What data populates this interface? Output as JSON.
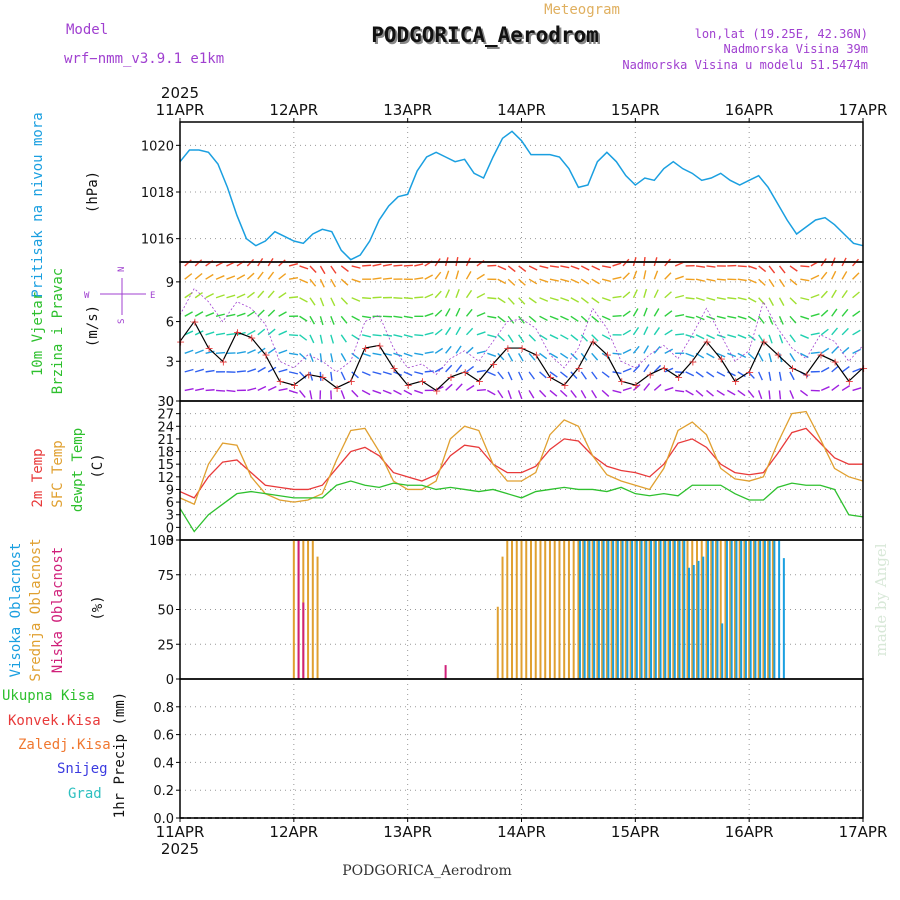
{
  "header": {
    "model_label": "Model",
    "model_name": "wrf−nmm_v3.9.1 e1km",
    "station": "PODGORICA_Aerodrom",
    "meteogram": "Meteogram",
    "lonlat": "lon,lat (19.25E, 42.36N)",
    "elevation": "Nadmorska Visina 39m",
    "model_elevation": "Nadmorska Visina u modelu 51.5474m",
    "year": "2025",
    "footer_station": "PODGORICA_Aerodrom",
    "credit": "made by Angel"
  },
  "colors": {
    "pressure": "#1a9fe0",
    "temp2m": "#e83a3a",
    "sfc": "#e0a030",
    "dewpt": "#2ec02e",
    "high_cloud": "#1a9fe0",
    "mid_cloud": "#e0a030",
    "low_cloud": "#d0207a",
    "wind_speed": "#000000",
    "gust_marker": "#e83a3a",
    "purple": "#a040d0"
  },
  "chart_data": [
    {
      "type": "line",
      "title": "",
      "ylabel": "Pritisak na nivou mora",
      "unit": "(hPa)",
      "ylim": [
        1015,
        1021
      ],
      "yticks": [
        1016,
        1018,
        1020
      ],
      "x_ticks": [
        "11APR",
        "12APR",
        "13APR",
        "14APR",
        "15APR",
        "16APR",
        "17APR"
      ],
      "x": [
        0,
        2,
        4,
        6,
        8,
        10,
        12,
        14,
        16,
        18,
        20,
        22,
        24,
        26,
        28,
        30,
        32,
        34,
        36,
        38,
        40,
        42,
        44,
        46,
        48,
        50,
        52,
        54,
        56,
        58,
        60,
        62,
        64,
        66,
        68,
        70,
        72,
        74,
        76,
        78,
        80,
        82,
        84,
        86,
        88,
        90,
        92,
        94,
        96,
        98,
        100,
        102,
        104,
        106,
        108,
        110,
        112,
        114,
        116,
        118,
        120,
        122,
        124,
        126,
        128,
        130,
        132,
        134,
        136,
        138,
        140,
        142,
        144
      ],
      "series": [
        {
          "name": "",
          "values": [
            1019.3,
            1019.8,
            1019.8,
            1019.7,
            1019.2,
            1018.2,
            1017.0,
            1016.0,
            1015.7,
            1015.9,
            1016.3,
            1016.1,
            1015.9,
            1015.8,
            1016.2,
            1016.4,
            1016.3,
            1015.5,
            1015.1,
            1015.3,
            1015.9,
            1016.8,
            1017.4,
            1017.8,
            1017.9,
            1018.9,
            1019.5,
            1019.7,
            1019.5,
            1019.3,
            1019.4,
            1018.8,
            1018.6,
            1019.5,
            1020.3,
            1020.6,
            1020.2,
            1019.6,
            1019.6,
            1019.6,
            1019.5,
            1019.0,
            1018.2,
            1018.3,
            1019.3,
            1019.7,
            1019.3,
            1018.7,
            1018.3,
            1018.6,
            1018.5,
            1019.0,
            1019.3,
            1019.0,
            1018.8,
            1018.5,
            1018.6,
            1018.8,
            1018.5,
            1018.3,
            1018.5,
            1018.7,
            1018.2,
            1017.5,
            1016.8,
            1016.2,
            1016.5,
            1016.8,
            1016.9,
            1016.6,
            1016.2,
            1015.8,
            1015.7
          ]
        }
      ]
    },
    {
      "type": "line",
      "title": "",
      "ylabel": "10m Vjetar Brzina i Pravac",
      "unit": "(m/s)",
      "ylim": [
        0,
        10.5
      ],
      "yticks": [
        0,
        3,
        6,
        9
      ],
      "x": [
        0,
        3,
        6,
        9,
        12,
        15,
        18,
        21,
        24,
        27,
        30,
        33,
        36,
        39,
        42,
        45,
        48,
        51,
        54,
        57,
        60,
        63,
        66,
        69,
        72,
        75,
        78,
        81,
        84,
        87,
        90,
        93,
        96,
        99,
        102,
        105,
        108,
        111,
        114,
        117,
        120,
        123,
        126,
        129,
        132,
        135,
        138,
        141,
        144
      ],
      "series": [
        {
          "name": "",
          "values": [
            4.5,
            6.0,
            4.0,
            3.0,
            5.2,
            4.8,
            3.5,
            1.5,
            1.2,
            2.0,
            1.8,
            1.0,
            1.5,
            4.0,
            4.2,
            2.5,
            1.2,
            1.5,
            0.8,
            1.8,
            2.2,
            1.5,
            2.8,
            4.0,
            4.0,
            3.5,
            1.8,
            1.2,
            2.5,
            4.5,
            3.5,
            1.5,
            1.2,
            2.0,
            2.5,
            1.8,
            3.0,
            4.5,
            3.2,
            1.5,
            2.2,
            4.5,
            3.5,
            2.5,
            2.0,
            3.5,
            3.0,
            1.5,
            2.5
          ]
        },
        {
          "name": "",
          "values": [
            6.5,
            8.5,
            7.5,
            6.0,
            7.5,
            7.0,
            5.8,
            3.0,
            2.5,
            3.5,
            3.0,
            2.2,
            3.0,
            6.0,
            6.5,
            4.0,
            2.5,
            2.8,
            2.0,
            3.2,
            3.8,
            3.0,
            4.5,
            6.0,
            6.2,
            5.5,
            3.5,
            2.5,
            4.0,
            7.0,
            5.5,
            3.0,
            2.5,
            3.5,
            4.2,
            3.2,
            5.0,
            7.0,
            5.0,
            3.0,
            3.8,
            7.5,
            5.5,
            4.0,
            3.2,
            5.0,
            4.5,
            3.0,
            4.2
          ]
        }
      ]
    },
    {
      "type": "line",
      "title": "",
      "ylabel": "2m Temp SFC Temp dewpt Temp",
      "unit": "(C)",
      "ylim": [
        -3,
        30
      ],
      "yticks": [
        -3,
        0,
        3,
        6,
        9,
        12,
        15,
        18,
        21,
        24,
        27,
        30
      ],
      "x": [
        0,
        3,
        6,
        9,
        12,
        15,
        18,
        21,
        24,
        27,
        30,
        33,
        36,
        39,
        42,
        45,
        48,
        51,
        54,
        57,
        60,
        63,
        66,
        69,
        72,
        75,
        78,
        81,
        84,
        87,
        90,
        93,
        96,
        99,
        102,
        105,
        108,
        111,
        114,
        117,
        120,
        123,
        126,
        129,
        132,
        135,
        138,
        141,
        144
      ],
      "series": [
        {
          "name": "2m Temp",
          "values": [
            8.5,
            7.0,
            12.0,
            15.5,
            16.0,
            13.0,
            10.0,
            9.5,
            9.0,
            9.0,
            10.0,
            14.0,
            18.0,
            19.0,
            17.0,
            13.0,
            12.0,
            11.0,
            12.5,
            17.0,
            19.5,
            19.0,
            15.0,
            13.0,
            13.0,
            14.5,
            18.5,
            21.0,
            20.5,
            17.0,
            14.5,
            13.5,
            13.0,
            12.0,
            15.0,
            20.0,
            21.0,
            19.0,
            15.0,
            13.0,
            12.5,
            13.0,
            17.5,
            22.5,
            23.5,
            20.0,
            16.5,
            15.0,
            15.0
          ]
        },
        {
          "name": "SFC Temp",
          "values": [
            7.0,
            5.5,
            15.0,
            20.0,
            19.5,
            12.0,
            8.0,
            6.5,
            6.0,
            6.5,
            8.0,
            16.0,
            23.0,
            23.5,
            18.0,
            11.0,
            9.0,
            9.0,
            11.0,
            21.0,
            24.0,
            23.0,
            15.0,
            11.0,
            11.0,
            13.0,
            22.0,
            25.5,
            24.0,
            17.0,
            12.5,
            11.0,
            10.0,
            9.0,
            14.0,
            23.0,
            25.0,
            22.0,
            14.0,
            11.5,
            11.0,
            12.0,
            20.0,
            27.0,
            27.5,
            21.0,
            14.0,
            12.0,
            11.0
          ]
        },
        {
          "name": "dewpt Temp",
          "values": [
            4.5,
            -1.0,
            3.0,
            5.5,
            8.0,
            8.5,
            8.0,
            7.5,
            7.0,
            7.0,
            7.0,
            10.0,
            11.0,
            10.0,
            9.5,
            10.5,
            10.0,
            10.0,
            9.0,
            9.5,
            9.0,
            8.5,
            9.0,
            8.0,
            7.0,
            8.5,
            9.0,
            9.5,
            9.0,
            9.0,
            8.5,
            9.5,
            8.0,
            7.5,
            8.0,
            7.5,
            10.0,
            10.0,
            10.0,
            8.0,
            6.5,
            6.5,
            9.5,
            10.5,
            10.0,
            10.0,
            9.0,
            3.0,
            2.5
          ]
        }
      ]
    },
    {
      "type": "bar",
      "title": "",
      "ylabel": "Visoka Oblacnost Srednja Oblacnost Niska Oblacnost",
      "unit": "(%)",
      "ylim": [
        0,
        100
      ],
      "yticks": [
        0,
        25,
        50,
        75,
        100
      ],
      "series": [
        {
          "name": "Visoka Oblacnost",
          "x": [
            84,
            85,
            86,
            87,
            88,
            89,
            90,
            91,
            92,
            93,
            94,
            95,
            96,
            97,
            98,
            99,
            100,
            101,
            102,
            103,
            104,
            105,
            106,
            107,
            108,
            109,
            110,
            111,
            112,
            113,
            114,
            115,
            116,
            117,
            118,
            119,
            120,
            121,
            122,
            123,
            124,
            125,
            126,
            127
          ],
          "values": [
            100,
            100,
            100,
            100,
            100,
            100,
            100,
            100,
            100,
            100,
            100,
            100,
            100,
            100,
            100,
            100,
            100,
            100,
            100,
            100,
            100,
            100,
            100,
            80,
            82,
            85,
            88,
            100,
            100,
            100,
            40,
            100,
            100,
            100,
            100,
            100,
            100,
            100,
            100,
            100,
            100,
            100,
            100,
            87
          ]
        },
        {
          "name": "Srednja Oblacnost",
          "x": [
            24,
            25,
            26,
            27,
            28,
            29,
            67,
            68,
            69,
            70,
            71,
            72,
            73,
            74,
            75,
            76,
            77,
            78,
            79,
            80,
            81,
            82,
            83,
            84,
            85,
            86,
            87,
            88,
            89,
            90,
            91,
            92,
            93,
            94,
            95,
            96,
            97,
            98,
            99,
            100,
            101,
            102,
            103,
            104,
            105,
            106,
            107,
            108,
            109,
            110,
            111,
            112,
            113,
            114,
            115,
            116,
            117,
            118,
            119,
            120,
            121,
            122,
            123,
            124,
            125
          ],
          "values": [
            100,
            100,
            100,
            100,
            100,
            88,
            52,
            88,
            100,
            100,
            100,
            100,
            100,
            100,
            100,
            100,
            100,
            100,
            100,
            100,
            100,
            100,
            100,
            100,
            100,
            100,
            100,
            100,
            100,
            100,
            100,
            100,
            100,
            100,
            100,
            100,
            100,
            100,
            100,
            100,
            100,
            100,
            100,
            100,
            100,
            100,
            100,
            100,
            100,
            100,
            100,
            100,
            100,
            100,
            100,
            100,
            100,
            100,
            100,
            100,
            100,
            100,
            100,
            100,
            100
          ]
        },
        {
          "name": "Niska Oblacnost",
          "x": [
            25,
            26,
            56
          ],
          "values": [
            100,
            55,
            10
          ]
        }
      ]
    },
    {
      "type": "line",
      "title": "",
      "ylabel": "1hr Precip",
      "unit": "(mm)",
      "ylim": [
        0,
        1
      ],
      "yticks": [
        0,
        0.2,
        0.4,
        0.6,
        0.8
      ],
      "x_ticks": [
        "11APR",
        "12APR",
        "13APR",
        "14APR",
        "15APR",
        "16APR",
        "17APR"
      ],
      "series": [
        {
          "name": "Ukupna Kisa",
          "values": []
        },
        {
          "name": "Konvek.Kisa",
          "values": []
        },
        {
          "name": "Zaledj.Kisa",
          "values": []
        },
        {
          "name": "Snijeg",
          "values": []
        },
        {
          "name": "Grad",
          "values": []
        }
      ]
    }
  ],
  "axis_labels": {
    "pressure_y": "Pritisak na nivou mora",
    "pressure_unit": "(hPa)",
    "wind_y1": "10m Vjetar",
    "wind_y2": "Brzina i Pravac",
    "wind_unit": "(m/s)",
    "wind_compass_n": "N",
    "wind_compass_w": "W",
    "wind_compass_e": "E",
    "wind_compass_s": "S",
    "temp_2m": "2m Temp",
    "temp_sfc": "SFC Temp",
    "temp_dew": "dewpt Temp",
    "temp_unit": "(C)",
    "cloud_high": "Visoka Oblacnost",
    "cloud_mid": "Srednja Oblacnost",
    "cloud_low": "Niska Oblacnost",
    "cloud_unit": "(%)",
    "precip_label": "1hr Precip",
    "precip_unit": "(mm)",
    "precip_ukupna": "Ukupna Kisa",
    "precip_konvek": "Konvek.Kisa",
    "precip_zaledj": "Zaledj.Kisa",
    "precip_snijeg": "Snijeg",
    "precip_grad": "Grad"
  }
}
